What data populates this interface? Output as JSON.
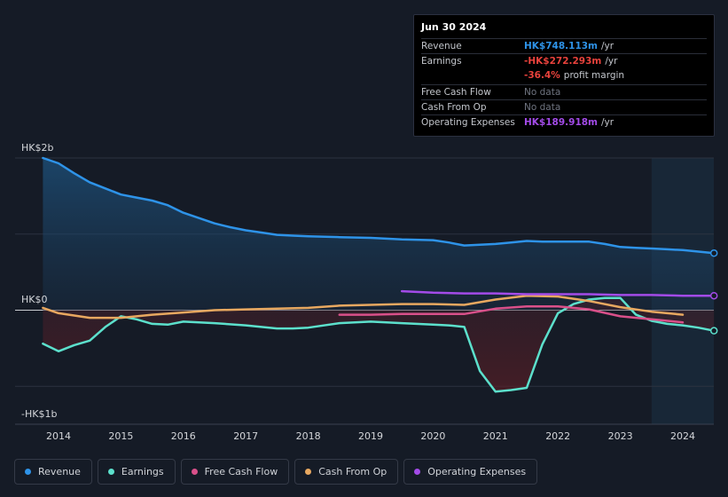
{
  "tooltip": {
    "date": "Jun 30 2024",
    "rows": [
      {
        "label": "Revenue",
        "value": "HK$748.113m",
        "unit": "/yr",
        "color": "#2e93e8"
      },
      {
        "label": "Earnings",
        "value": "-HK$272.293m",
        "unit": "/yr",
        "color": "#e8423c"
      },
      {
        "label": "",
        "value": "-36.4%",
        "unit": "profit margin",
        "color": "#e8423c"
      },
      {
        "label": "Free Cash Flow",
        "value": "No data",
        "unit": "",
        "color": "#6f7480"
      },
      {
        "label": "Cash From Op",
        "value": "No data",
        "unit": "",
        "color": "#6f7480"
      },
      {
        "label": "Operating Expenses",
        "value": "HK$189.918m",
        "unit": "/yr",
        "color": "#a34be8"
      }
    ]
  },
  "legend": [
    {
      "label": "Revenue",
      "color": "#2e93e8"
    },
    {
      "label": "Earnings",
      "color": "#5ce0cc"
    },
    {
      "label": "Free Cash Flow",
      "color": "#d9508a"
    },
    {
      "label": "Cash From Op",
      "color": "#e8a860"
    },
    {
      "label": "Operating Expenses",
      "color": "#a34be8"
    }
  ],
  "chart_data": {
    "type": "area",
    "currency": "HK$",
    "unit": "billions",
    "y_tick_labels": [
      "HK$2b",
      "HK$0",
      "-HK$1b"
    ],
    "ylim": [
      -1.5,
      2
    ],
    "xlim": [
      2013.6,
      2024.5
    ],
    "x_ticks": [
      2014,
      2015,
      2016,
      2017,
      2018,
      2019,
      2020,
      2021,
      2022,
      2023,
      2024
    ],
    "x_tick_labels": [
      "2014",
      "2015",
      "2016",
      "2017",
      "2018",
      "2019",
      "2020",
      "2021",
      "2022",
      "2023",
      "2024"
    ],
    "highlight_start": 2023.5,
    "grid": true,
    "legend_position": "bottom",
    "series": [
      {
        "name": "Revenue",
        "color": "#2e93e8",
        "fill": true,
        "x": [
          2013.75,
          2014.0,
          2014.25,
          2014.5,
          2014.75,
          2015.0,
          2015.25,
          2015.5,
          2015.75,
          2016.0,
          2016.25,
          2016.5,
          2016.75,
          2017.0,
          2017.25,
          2017.5,
          2017.75,
          2018.0,
          2018.5,
          2019.0,
          2019.5,
          2020.0,
          2020.25,
          2020.5,
          2020.75,
          2021.0,
          2021.25,
          2021.5,
          2021.75,
          2022.0,
          2022.25,
          2022.5,
          2022.75,
          2023.0,
          2023.25,
          2023.5,
          2023.75,
          2024.0,
          2024.25,
          2024.5
        ],
        "values": [
          2.0,
          1.93,
          1.8,
          1.68,
          1.6,
          1.52,
          1.48,
          1.44,
          1.38,
          1.28,
          1.21,
          1.14,
          1.09,
          1.05,
          1.02,
          0.99,
          0.98,
          0.97,
          0.96,
          0.95,
          0.93,
          0.92,
          0.89,
          0.85,
          0.86,
          0.87,
          0.89,
          0.91,
          0.9,
          0.9,
          0.9,
          0.9,
          0.87,
          0.83,
          0.82,
          0.81,
          0.8,
          0.79,
          0.77,
          0.75
        ]
      },
      {
        "name": "Earnings",
        "color": "#5ce0cc",
        "fill": true,
        "x": [
          2013.75,
          2014.0,
          2014.25,
          2014.5,
          2014.75,
          2015.0,
          2015.25,
          2015.5,
          2015.75,
          2016.0,
          2016.5,
          2017.0,
          2017.25,
          2017.5,
          2017.75,
          2018.0,
          2018.5,
          2019.0,
          2019.5,
          2020.0,
          2020.25,
          2020.5,
          2020.75,
          2021.0,
          2021.25,
          2021.5,
          2021.75,
          2022.0,
          2022.25,
          2022.5,
          2022.75,
          2023.0,
          2023.25,
          2023.5,
          2023.75,
          2024.0,
          2024.25,
          2024.5
        ],
        "values": [
          -0.44,
          -0.54,
          -0.46,
          -0.4,
          -0.22,
          -0.08,
          -0.12,
          -0.18,
          -0.19,
          -0.15,
          -0.17,
          -0.2,
          -0.22,
          -0.24,
          -0.24,
          -0.23,
          -0.17,
          -0.15,
          -0.17,
          -0.19,
          -0.2,
          -0.22,
          -0.8,
          -1.07,
          -1.05,
          -1.02,
          -0.45,
          -0.04,
          0.08,
          0.14,
          0.16,
          0.16,
          -0.06,
          -0.14,
          -0.18,
          -0.2,
          -0.23,
          -0.27
        ]
      },
      {
        "name": "Free Cash Flow",
        "color": "#d9508a",
        "fill": false,
        "x": [
          2018.5,
          2019.0,
          2019.5,
          2020.0,
          2020.5,
          2021.0,
          2021.5,
          2022.0,
          2022.5,
          2023.0,
          2023.5,
          2024.0
        ],
        "values": [
          -0.06,
          -0.06,
          -0.05,
          -0.05,
          -0.05,
          0.02,
          0.05,
          0.05,
          0.01,
          -0.08,
          -0.12,
          -0.16
        ]
      },
      {
        "name": "Cash From Op",
        "color": "#e8a860",
        "fill": false,
        "x": [
          2013.75,
          2014.0,
          2014.5,
          2015.0,
          2015.5,
          2016.0,
          2016.5,
          2017.0,
          2017.5,
          2018.0,
          2018.5,
          2019.0,
          2019.5,
          2020.0,
          2020.5,
          2021.0,
          2021.5,
          2022.0,
          2022.5,
          2023.0,
          2023.5,
          2024.0
        ],
        "values": [
          0.03,
          -0.04,
          -0.1,
          -0.1,
          -0.06,
          -0.03,
          0.0,
          0.01,
          0.02,
          0.03,
          0.06,
          0.07,
          0.08,
          0.08,
          0.07,
          0.14,
          0.19,
          0.18,
          0.12,
          0.04,
          -0.02,
          -0.06
        ]
      },
      {
        "name": "Operating Expenses",
        "color": "#a34be8",
        "fill": false,
        "x": [
          2019.5,
          2020.0,
          2020.5,
          2021.0,
          2021.5,
          2022.0,
          2022.5,
          2023.0,
          2023.5,
          2024.0,
          2024.5
        ],
        "values": [
          0.25,
          0.23,
          0.22,
          0.22,
          0.21,
          0.21,
          0.21,
          0.2,
          0.2,
          0.19,
          0.19
        ]
      }
    ]
  }
}
